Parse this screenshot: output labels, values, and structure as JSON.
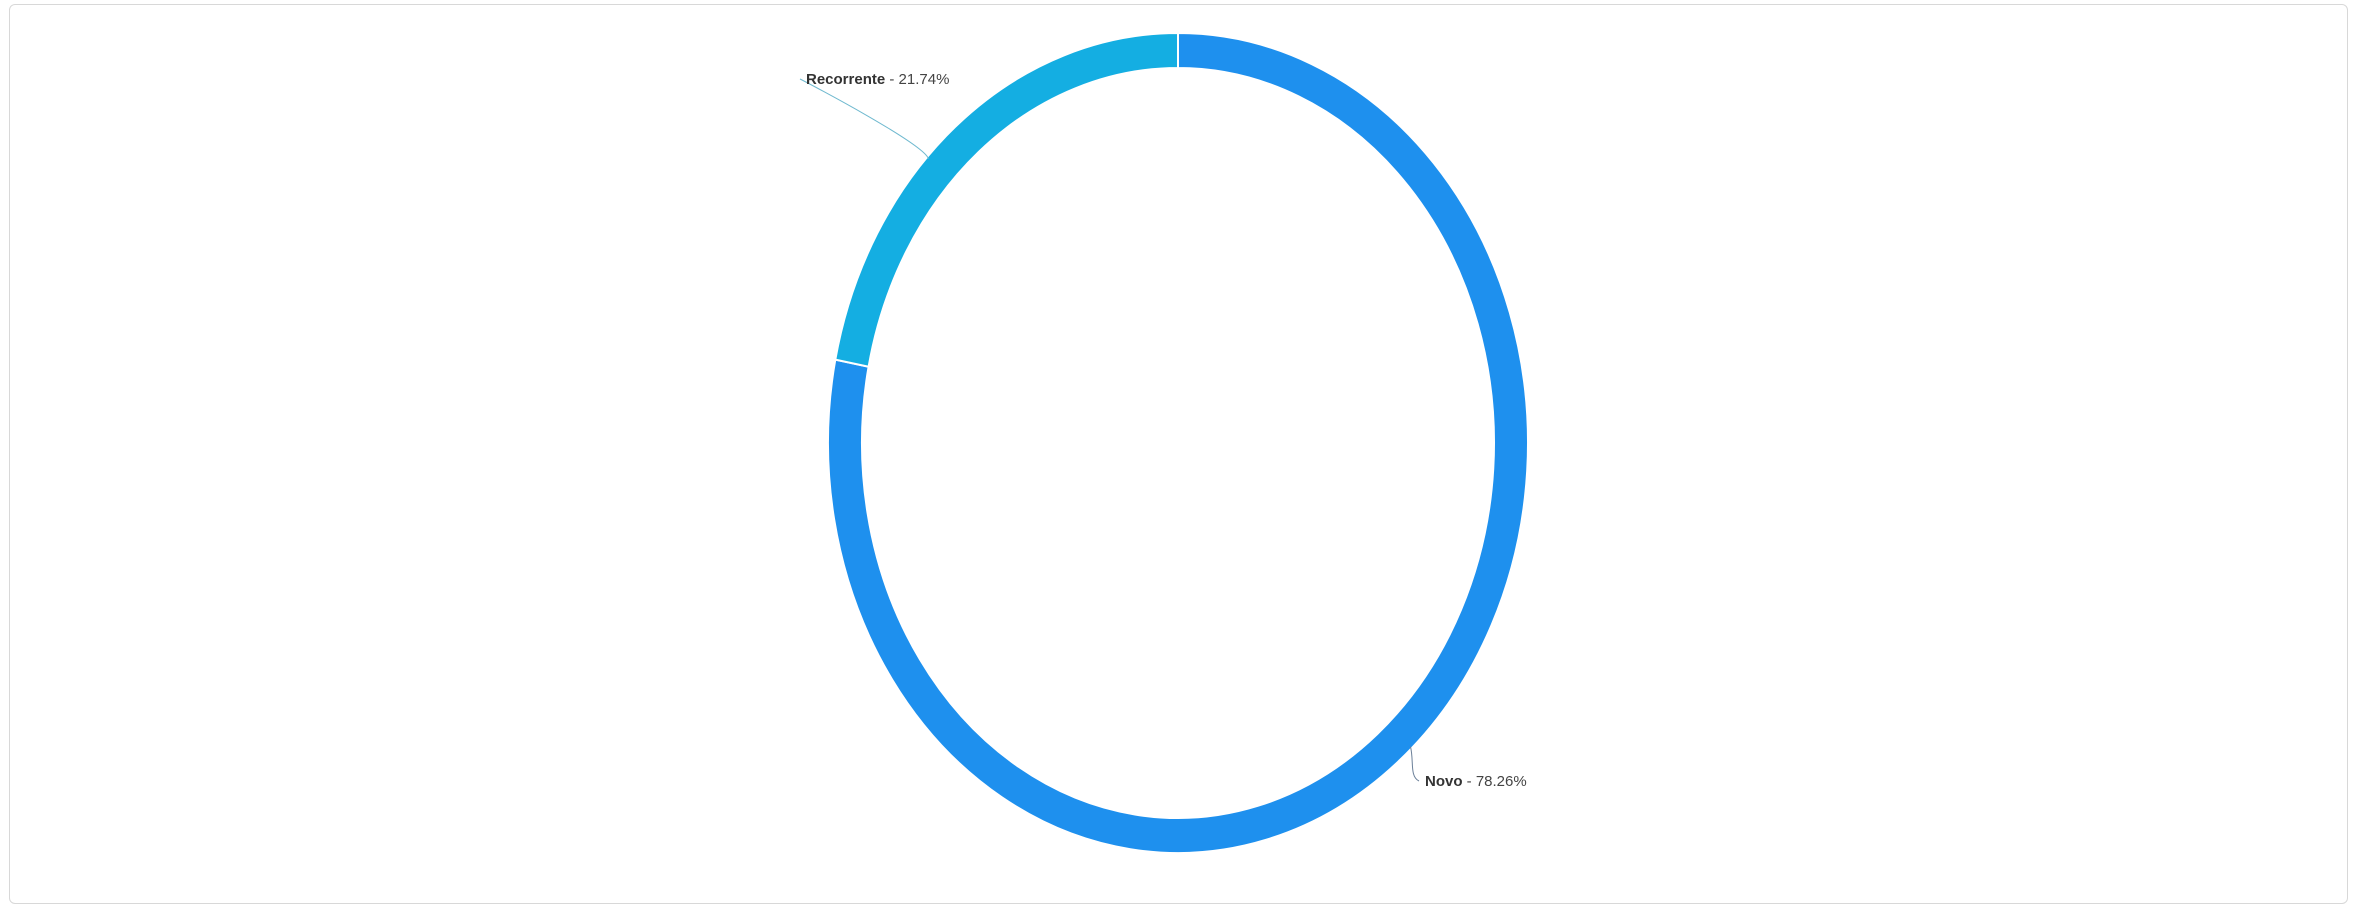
{
  "chart_data": {
    "type": "pie",
    "variant": "donut",
    "slices": [
      {
        "label": "Novo",
        "percent": 78.26,
        "value_text": "78.26%",
        "color": "#1e90ee"
      },
      {
        "label": "Recorrente",
        "percent": 21.74,
        "value_text": "21.74%",
        "color": "#14aee2"
      }
    ],
    "label_separator": " - ",
    "start_angle": "top",
    "direction": "clockwise",
    "legend": "none",
    "connector_color": "#777777"
  }
}
